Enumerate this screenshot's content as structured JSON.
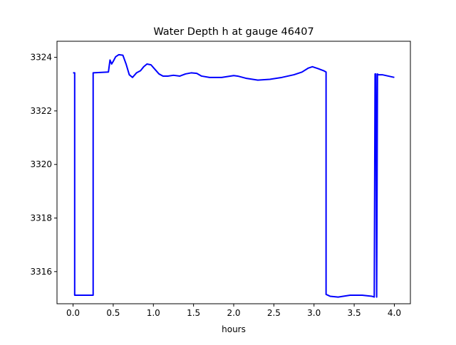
{
  "chart_data": {
    "type": "line",
    "title": "Water Depth h at gauge 46407",
    "xlabel": "hours",
    "ylabel": "",
    "xlim": [
      -0.2,
      4.2
    ],
    "ylim": [
      3314.8,
      3324.6
    ],
    "xticks": [
      0.0,
      0.5,
      1.0,
      1.5,
      2.0,
      2.5,
      3.0,
      3.5,
      4.0
    ],
    "xtick_labels": [
      "0.0",
      "0.5",
      "1.0",
      "1.5",
      "2.0",
      "2.5",
      "3.0",
      "3.5",
      "4.0"
    ],
    "yticks": [
      3316,
      3318,
      3320,
      3322,
      3324
    ],
    "ytick_labels": [
      "3316",
      "3318",
      "3320",
      "3322",
      "3324"
    ],
    "grid": false,
    "series": [
      {
        "color": "#0000ff",
        "x": [
          0.0,
          0.02,
          0.02,
          0.25,
          0.25,
          0.44,
          0.46,
          0.48,
          0.5,
          0.53,
          0.57,
          0.62,
          0.66,
          0.7,
          0.74,
          0.79,
          0.84,
          0.88,
          0.92,
          0.97,
          1.02,
          1.07,
          1.12,
          1.18,
          1.25,
          1.33,
          1.4,
          1.47,
          1.54,
          1.6,
          1.7,
          1.85,
          2.0,
          2.05,
          2.15,
          2.3,
          2.45,
          2.6,
          2.75,
          2.85,
          2.93,
          2.98,
          3.05,
          3.12,
          3.15,
          3.15,
          3.2,
          3.3,
          3.45,
          3.6,
          3.72,
          3.75,
          3.76,
          3.77,
          3.78,
          3.79,
          3.8,
          3.85,
          4.0
        ],
        "y": [
          3323.42,
          3323.42,
          3315.12,
          3315.12,
          3323.42,
          3323.45,
          3323.9,
          3323.75,
          3323.85,
          3324.02,
          3324.1,
          3324.08,
          3323.75,
          3323.35,
          3323.25,
          3323.42,
          3323.5,
          3323.65,
          3323.75,
          3323.72,
          3323.55,
          3323.38,
          3323.3,
          3323.3,
          3323.33,
          3323.3,
          3323.38,
          3323.42,
          3323.4,
          3323.3,
          3323.25,
          3323.25,
          3323.32,
          3323.3,
          3323.22,
          3323.15,
          3323.18,
          3323.25,
          3323.35,
          3323.45,
          3323.6,
          3323.65,
          3323.58,
          3323.5,
          3323.45,
          3315.15,
          3315.08,
          3315.05,
          3315.12,
          3315.12,
          3315.08,
          3315.05,
          3323.38,
          3323.38,
          3315.05,
          3323.38,
          3323.35,
          3323.35,
          3323.25
        ]
      }
    ]
  }
}
